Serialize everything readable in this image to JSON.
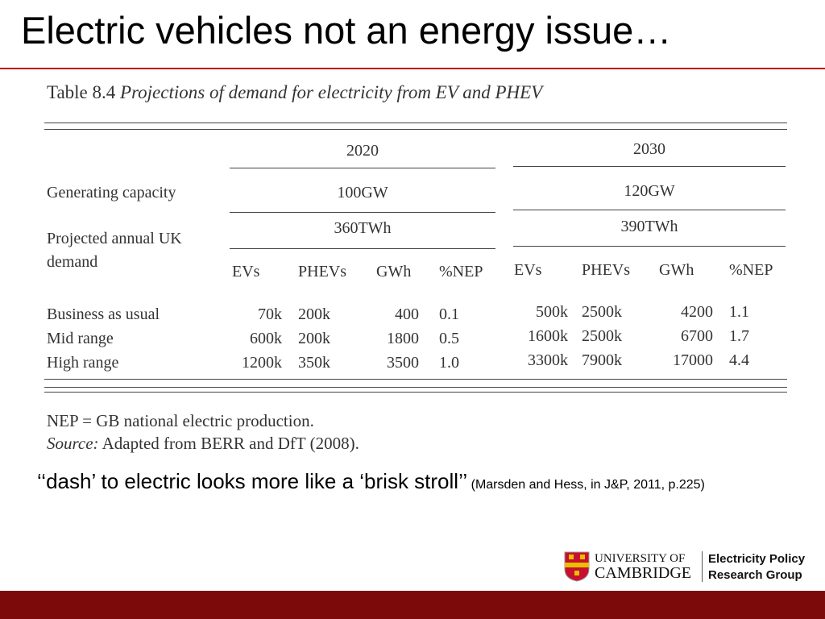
{
  "title": "Electric vehicles not an energy issue…",
  "table": {
    "caption_label": "Table 8.4",
    "caption": "Projections of demand for electricity from EV and PHEV",
    "years": [
      "2020",
      "2030"
    ],
    "capacity_label": "Generating capacity",
    "capacity": [
      "100GW",
      "120GW"
    ],
    "demand_label": "Projected annual UK demand",
    "demand": [
      "360TWh",
      "390TWh"
    ],
    "columns": [
      "EVs",
      "PHEVs",
      "GWh",
      "%NEP",
      "EVs",
      "PHEVs",
      "GWh",
      "%NEP"
    ],
    "rows": [
      [
        "Business as usual",
        "70k",
        "200k",
        "400",
        "0.1",
        "500k",
        "2500k",
        "4200",
        "1.1"
      ],
      [
        "Mid range",
        "600k",
        "200k",
        "1800",
        "0.5",
        "1600k",
        "2500k",
        "6700",
        "1.7"
      ],
      [
        "High range",
        "1200k",
        "350k",
        "3500",
        "1.0",
        "3300k",
        "7900k",
        "17000",
        "4.4"
      ]
    ],
    "note": "NEP = GB national electric production.",
    "source_label": "Source:",
    "source": "Adapted from BERR and DfT (2008)."
  },
  "quote": "‘‘dash’ to electric looks more like a ‘brisk stroll’’",
  "citation": "(Marsden and Hess, in J&P, 2011, p.225)",
  "logo": {
    "university_1": "UNIVERSITY OF",
    "university_2": "CAMBRIDGE",
    "group_1": "Electricity Policy",
    "group_2": "Research Group"
  }
}
